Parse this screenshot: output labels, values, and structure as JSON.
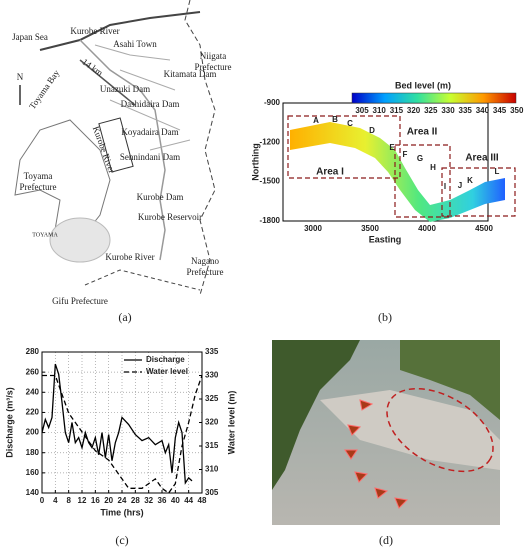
{
  "map_a": {
    "labels": [
      "Japan Sea",
      "Kurobe River",
      "Asahi Town",
      "Niigata",
      "Prefecture",
      "Toyama Bay",
      "Kitamata Dam",
      "Unazuki Dam",
      "Dashidaira Dam",
      "Koyadaira Dam",
      "Sennindani Dam",
      "Kurobe Dam",
      "Kurobe Reservoir",
      "Kurobe River",
      "Nagano",
      "Prefecture",
      "Gifu Prefecture",
      "Toyama",
      "Prefecture",
      "Kurobe River",
      "TOYAMA",
      "N",
      "14 km"
    ],
    "caption": "(a)"
  },
  "map_b": {
    "colorbar_title": "Bed level (m)",
    "colorbar_ticks": [
      "305",
      "310",
      "315",
      "320",
      "325",
      "330",
      "335",
      "340",
      "345",
      "350"
    ],
    "yticks": [
      "-900",
      "-1200",
      "-1500",
      "-1800"
    ],
    "xticks": [
      "3000",
      "3500",
      "4000",
      "4500"
    ],
    "ylabel": "Northing",
    "xlabel": "Easting",
    "areas": [
      "Area I",
      "Area II",
      "Area III"
    ],
    "section_labels": [
      "A",
      "B",
      "C",
      "D",
      "E",
      "F",
      "G",
      "H",
      "I",
      "J",
      "K",
      "L"
    ],
    "caption": "(b)"
  },
  "chart_data": {
    "type": "line",
    "xlabel": "Time (hrs)",
    "ylabel": "Discharge (m³/s)",
    "y2label": "Water level (m)",
    "xlim": [
      0,
      48
    ],
    "xticks": [
      0,
      4,
      8,
      12,
      16,
      20,
      24,
      28,
      32,
      36,
      40,
      44,
      48
    ],
    "ylim": [
      140,
      280
    ],
    "yticks": [
      140,
      160,
      180,
      200,
      220,
      240,
      260,
      280
    ],
    "y2lim": [
      305,
      335
    ],
    "y2ticks": [
      305,
      310,
      315,
      320,
      325,
      330,
      335
    ],
    "grid": true,
    "legend": "upper right",
    "caption": "(c)",
    "series": [
      {
        "name": "Discharge",
        "color": "#000000",
        "dash": "solid",
        "x": [
          0,
          1,
          2,
          3,
          4,
          5,
          6,
          7,
          8,
          9,
          10,
          11,
          12,
          13,
          14,
          15,
          16,
          17,
          18,
          19,
          20,
          21,
          22,
          23,
          24,
          26,
          28,
          30,
          32,
          34,
          36,
          37,
          38,
          39,
          40,
          41,
          42,
          43,
          44,
          45
        ],
        "values": [
          200,
          213,
          205,
          215,
          268,
          258,
          230,
          200,
          190,
          210,
          190,
          195,
          185,
          200,
          190,
          185,
          195,
          178,
          200,
          175,
          198,
          172,
          190,
          200,
          215,
          208,
          198,
          192,
          195,
          188,
          192,
          180,
          188,
          160,
          195,
          210,
          200,
          150,
          155,
          152
        ]
      },
      {
        "name": "Water level",
        "color": "#000000",
        "dash": "dashed",
        "axis": "y2",
        "x": [
          0,
          2,
          4,
          6,
          8,
          10,
          12,
          14,
          16,
          18,
          20,
          22,
          24,
          26,
          28,
          30,
          32,
          34,
          36,
          38,
          40,
          42,
          44,
          46,
          48
        ],
        "values": [
          330,
          330,
          330,
          326,
          322,
          320,
          318,
          316,
          314,
          313,
          312,
          310,
          308,
          306,
          306,
          306,
          307,
          308,
          306,
          305,
          307,
          315,
          320,
          326,
          330
        ]
      }
    ]
  },
  "photo_d": {
    "caption": "(d)"
  }
}
